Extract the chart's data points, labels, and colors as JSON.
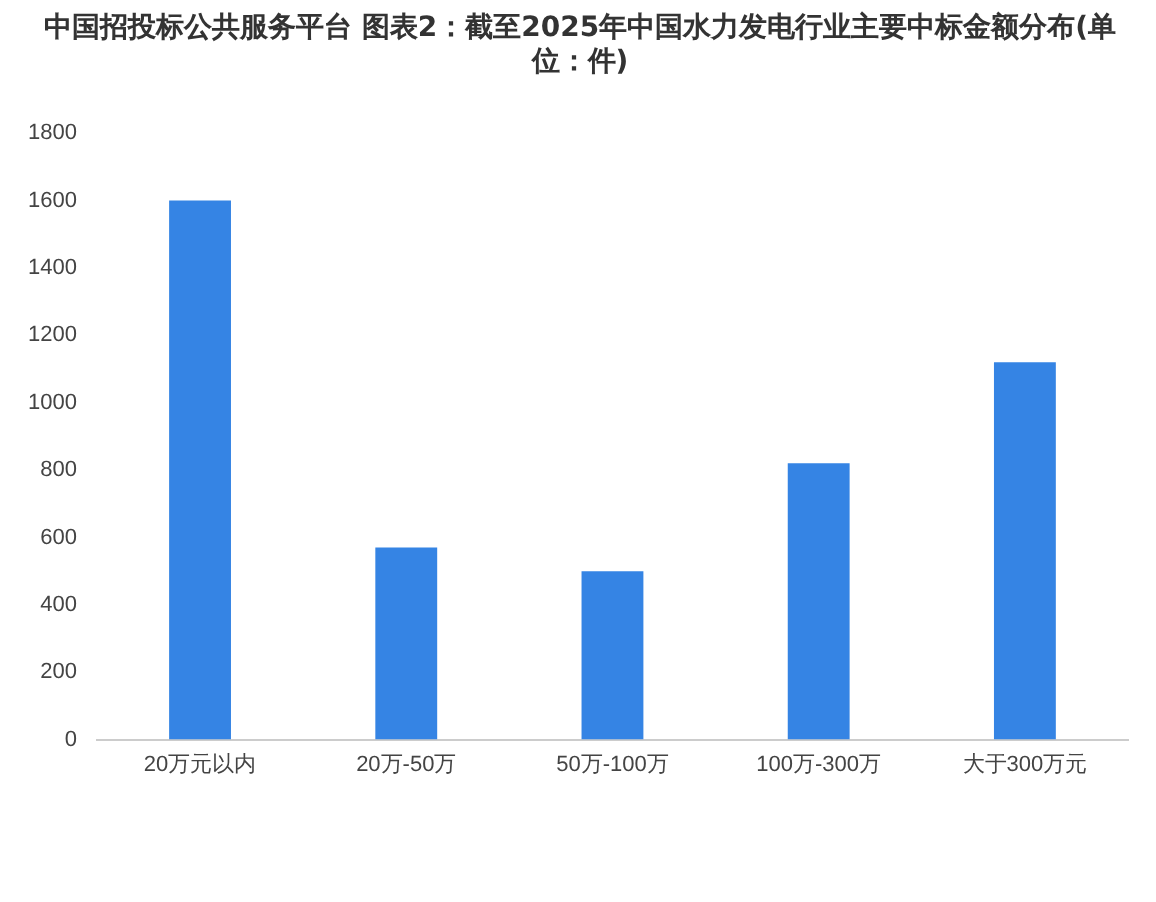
{
  "chart_data": {
    "type": "bar",
    "title": "中国招投标公共服务平台 图表2：截至2025年中国水力发电行业主要中标金额分布(单位：件)",
    "categories": [
      "20万元以内",
      "20万-50万",
      "50万-100万",
      "100万-300万",
      "大于300万元"
    ],
    "values": [
      1600,
      570,
      500,
      820,
      1120
    ],
    "color": "#3584e4",
    "ylim": [
      0,
      1800
    ],
    "yticks": [
      0,
      200,
      400,
      600,
      800,
      1000,
      1200,
      1400,
      1600,
      1800
    ],
    "grid": false,
    "legend": false
  }
}
